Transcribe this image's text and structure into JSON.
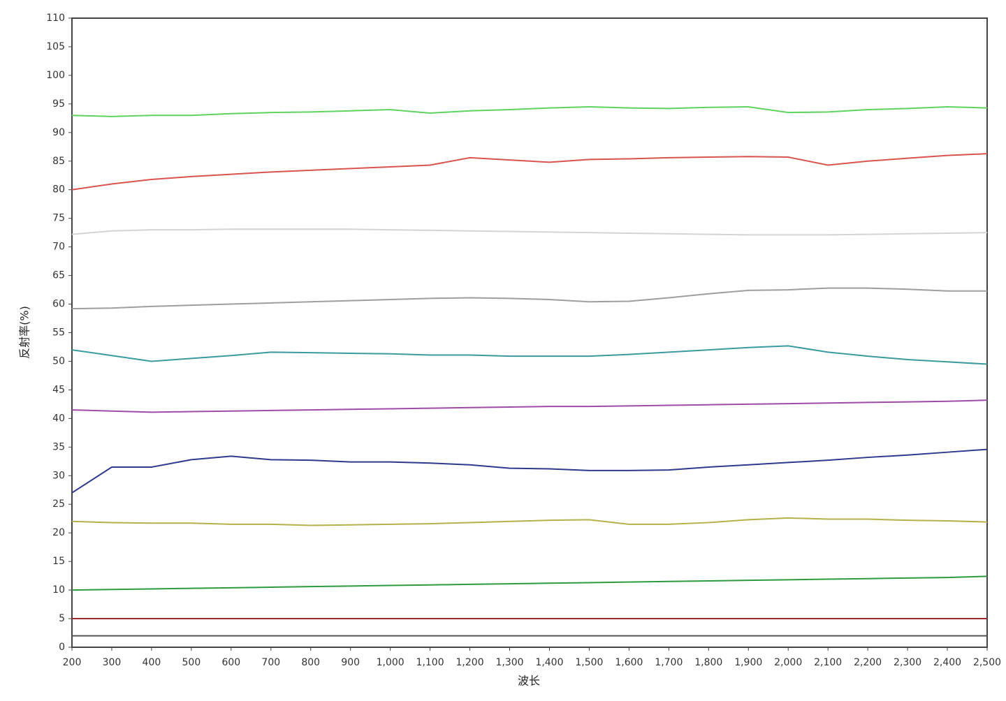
{
  "chart_data": {
    "type": "line",
    "x_label": "波长",
    "y_label": "反射率(%)",
    "x": [
      200,
      300,
      400,
      500,
      600,
      700,
      800,
      900,
      1000,
      1100,
      1200,
      1300,
      1400,
      1500,
      1600,
      1700,
      1800,
      1900,
      2000,
      2100,
      2200,
      2300,
      2400,
      2500
    ],
    "xlim": [
      200,
      2500
    ],
    "xticks": [
      200,
      300,
      400,
      500,
      600,
      700,
      800,
      900,
      {
        "value": 1000,
        "label": "1,000"
      },
      {
        "value": 1100,
        "label": "1,100"
      },
      {
        "value": 1200,
        "label": "1,200"
      },
      {
        "value": 1300,
        "label": "1,300"
      },
      {
        "value": 1400,
        "label": "1,400"
      },
      {
        "value": 1500,
        "label": "1,500"
      },
      {
        "value": 1600,
        "label": "1,600"
      },
      {
        "value": 1700,
        "label": "1,700"
      },
      {
        "value": 1800,
        "label": "1,800"
      },
      {
        "value": 1900,
        "label": "1,900"
      },
      {
        "value": 2000,
        "label": "2,000"
      },
      {
        "value": 2100,
        "label": "2,100"
      },
      {
        "value": 2200,
        "label": "2,200"
      },
      {
        "value": 2300,
        "label": "2,300"
      },
      {
        "value": 2400,
        "label": "2,400"
      },
      {
        "value": 2500,
        "label": "2,500"
      }
    ],
    "ylim": [
      0,
      110
    ],
    "yticks": [
      0,
      5,
      10,
      15,
      20,
      25,
      30,
      35,
      40,
      45,
      50,
      55,
      60,
      65,
      70,
      75,
      80,
      85,
      90,
      95,
      100,
      105,
      110
    ],
    "grid": false,
    "series": [
      {
        "color": "#5fd35f",
        "values": [
          93,
          92.8,
          93,
          93,
          93.3,
          93.5,
          93.6,
          93.8,
          94,
          93.4,
          93.8,
          94,
          94.3,
          94.5,
          94.3,
          94.2,
          94.4,
          94.5,
          93.5,
          93.6,
          94,
          94.2,
          94.5,
          94.3
        ]
      },
      {
        "color": "#d9534f",
        "values": [
          80,
          81,
          81.8,
          82.3,
          82.7,
          83.1,
          83.4,
          83.7,
          84,
          84.3,
          85.6,
          85.2,
          84.8,
          85.3,
          85.4,
          85.6,
          85.7,
          85.8,
          85.7,
          84.3,
          85,
          85.5,
          86,
          86.3
        ]
      },
      {
        "color": "#d4d4d4",
        "values": [
          72.2,
          72.8,
          73,
          73,
          73.1,
          73.1,
          73.1,
          73.1,
          73,
          72.9,
          72.8,
          72.7,
          72.6,
          72.5,
          72.4,
          72.3,
          72.2,
          72.1,
          72.1,
          72.1,
          72.2,
          72.3,
          72.4,
          72.5
        ]
      },
      {
        "color": "#9e9e9e",
        "values": [
          59.2,
          59.3,
          59.6,
          59.8,
          60,
          60.2,
          60.4,
          60.6,
          60.8,
          61,
          61.1,
          61,
          60.8,
          60.4,
          60.5,
          61.1,
          61.8,
          62.4,
          62.5,
          62.8,
          62.8,
          62.6,
          62.3,
          62.3
        ]
      },
      {
        "color": "#3a9a9e",
        "values": [
          52,
          51,
          50,
          50.5,
          51,
          51.6,
          51.5,
          51.4,
          51.3,
          51.1,
          51.1,
          50.9,
          50.9,
          50.9,
          51.2,
          51.6,
          52,
          52.4,
          52.7,
          51.6,
          50.9,
          50.3,
          49.9,
          49.5
        ]
      },
      {
        "color": "#a04aa8",
        "values": [
          41.5,
          41.3,
          41.1,
          41.2,
          41.3,
          41.4,
          41.5,
          41.6,
          41.7,
          41.8,
          41.9,
          42,
          42.1,
          42.1,
          42.2,
          42.3,
          42.4,
          42.5,
          42.6,
          42.7,
          42.8,
          42.9,
          43,
          43.2
        ]
      },
      {
        "color": "#2e3a8c",
        "values": [
          27,
          31.5,
          31.5,
          32.8,
          33.4,
          32.8,
          32.7,
          32.4,
          32.4,
          32.2,
          31.9,
          31.3,
          31.2,
          30.9,
          30.9,
          31,
          31.5,
          31.9,
          32.3,
          32.7,
          33.2,
          33.6,
          34.1,
          34.6
        ]
      },
      {
        "color": "#b5b04a",
        "values": [
          22,
          21.8,
          21.7,
          21.7,
          21.5,
          21.5,
          21.3,
          21.4,
          21.5,
          21.6,
          21.8,
          22,
          22.2,
          22.3,
          21.5,
          21.5,
          21.8,
          22.3,
          22.6,
          22.4,
          22.4,
          22.2,
          22.1,
          21.9
        ]
      },
      {
        "color": "#2e9a3e",
        "values": [
          10,
          10.1,
          10.2,
          10.3,
          10.4,
          10.5,
          10.6,
          10.7,
          10.8,
          10.9,
          11,
          11.1,
          11.2,
          11.3,
          11.4,
          11.5,
          11.6,
          11.7,
          11.8,
          11.9,
          12,
          12.1,
          12.2,
          12.4
        ]
      },
      {
        "color": "#a0282c",
        "values": [
          5,
          5,
          5,
          5,
          5,
          5,
          5,
          5,
          5,
          5,
          5,
          5,
          5,
          5,
          5,
          5,
          5,
          5,
          5,
          5,
          5,
          5,
          5,
          5
        ]
      },
      {
        "color": "#555555",
        "values": [
          2,
          2,
          2,
          2,
          2,
          2,
          2,
          2,
          2,
          2,
          2,
          2,
          2,
          2,
          2,
          2,
          2,
          2,
          2,
          2,
          2,
          2,
          2,
          2
        ]
      }
    ]
  }
}
